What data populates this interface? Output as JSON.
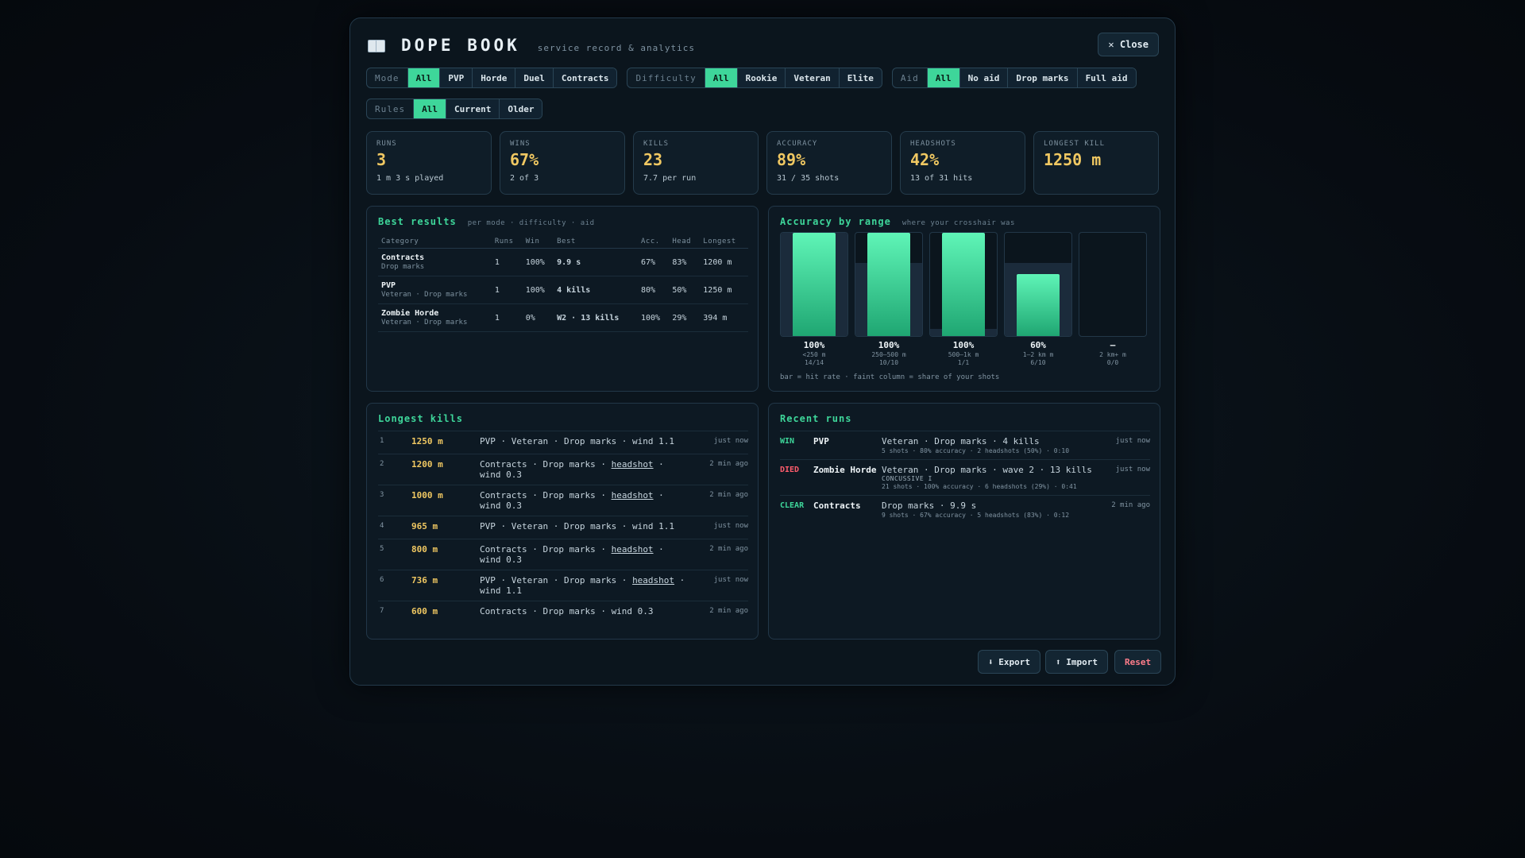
{
  "header": {
    "title": "DOPE BOOK",
    "subtitle": "service record & analytics",
    "close_label": "✕ Close"
  },
  "filters": {
    "mode": {
      "label": "Mode",
      "options": [
        "All",
        "PVP",
        "Horde",
        "Duel",
        "Contracts"
      ],
      "selected": "All"
    },
    "difficulty": {
      "label": "Difficulty",
      "options": [
        "All",
        "Rookie",
        "Veteran",
        "Elite"
      ],
      "selected": "All"
    },
    "aid": {
      "label": "Aid",
      "options": [
        "All",
        "No aid",
        "Drop marks",
        "Full aid"
      ],
      "selected": "All"
    },
    "rules": {
      "label": "Rules",
      "options": [
        "All",
        "Current",
        "Older"
      ],
      "selected": "All"
    }
  },
  "stats": [
    {
      "label": "RUNS",
      "value": "3",
      "sub": "1 m 3 s played"
    },
    {
      "label": "WINS",
      "value": "67%",
      "sub": "2 of 3"
    },
    {
      "label": "KILLS",
      "value": "23",
      "sub": "7.7 per run"
    },
    {
      "label": "ACCURACY",
      "value": "89%",
      "sub": "31 / 35 shots"
    },
    {
      "label": "HEADSHOTS",
      "value": "42%",
      "sub": "13 of 31 hits"
    },
    {
      "label": "LONGEST KILL",
      "value": "1250 m",
      "sub": ""
    }
  ],
  "best": {
    "title": "Best results",
    "subtitle": "per mode · difficulty · aid",
    "columns": [
      "Category",
      "Runs",
      "Win",
      "Best",
      "Acc.",
      "Head",
      "Longest"
    ],
    "rows": [
      {
        "name": "Contracts",
        "sub": "Drop marks",
        "runs": "1",
        "win": "100%",
        "best": "9.9 s",
        "acc": "67%",
        "head": "83%",
        "longest": "1200 m"
      },
      {
        "name": "PVP",
        "sub": "Veteran · Drop marks",
        "runs": "1",
        "win": "100%",
        "best": "4 kills",
        "acc": "80%",
        "head": "50%",
        "longest": "1250 m"
      },
      {
        "name": "Zombie Horde",
        "sub": "Veteran · Drop marks",
        "runs": "1",
        "win": "0%",
        "best": "W2 · 13 kills",
        "acc": "100%",
        "head": "29%",
        "longest": "394 m"
      }
    ]
  },
  "accuracy": {
    "title": "Accuracy by range",
    "subtitle": "where your crosshair was",
    "note": "bar = hit rate · faint column = share of your shots",
    "bars": [
      {
        "pct": "100%",
        "range": "<250 m",
        "count": "14/14",
        "hit_rate": 1.0,
        "share": 1.0
      },
      {
        "pct": "100%",
        "range": "250–500 m",
        "count": "10/10",
        "hit_rate": 1.0,
        "share": 0.71
      },
      {
        "pct": "100%",
        "range": "500–1k m",
        "count": "1/1",
        "hit_rate": 1.0,
        "share": 0.07
      },
      {
        "pct": "60%",
        "range": "1–2 km m",
        "count": "6/10",
        "hit_rate": 0.6,
        "share": 0.71
      },
      {
        "pct": "—",
        "range": "2 km+ m",
        "count": "0/0",
        "hit_rate": 0,
        "share": 0
      }
    ]
  },
  "longest": {
    "title": "Longest kills",
    "rows": [
      {
        "rank": "1",
        "dist": "1250 m",
        "pre": "PVP · Veteran · Drop marks · wind 1.1",
        "hs": "",
        "post": "",
        "time": "just now"
      },
      {
        "rank": "2",
        "dist": "1200 m",
        "pre": "Contracts · Drop marks · ",
        "hs": "headshot",
        "post": " · wind 0.3",
        "time": "2 min ago"
      },
      {
        "rank": "3",
        "dist": "1000 m",
        "pre": "Contracts · Drop marks · ",
        "hs": "headshot",
        "post": " · wind 0.3",
        "time": "2 min ago"
      },
      {
        "rank": "4",
        "dist": "965 m",
        "pre": "PVP · Veteran · Drop marks · wind 1.1",
        "hs": "",
        "post": "",
        "time": "just now"
      },
      {
        "rank": "5",
        "dist": "800 m",
        "pre": "Contracts · Drop marks · ",
        "hs": "headshot",
        "post": " · wind 0.3",
        "time": "2 min ago"
      },
      {
        "rank": "6",
        "dist": "736 m",
        "pre": "PVP · Veteran · Drop marks · ",
        "hs": "headshot",
        "post": " · wind 1.1",
        "time": "just now"
      },
      {
        "rank": "7",
        "dist": "600 m",
        "pre": "Contracts · Drop marks · wind 0.3",
        "hs": "",
        "post": "",
        "time": "2 min ago"
      }
    ]
  },
  "recent": {
    "title": "Recent runs",
    "rows": [
      {
        "status": "WIN",
        "status_color": "#3ed69a",
        "mode": "PVP",
        "main": "Veteran · Drop marks · 4 kills",
        "tag": "",
        "detail": "5 shots · 80% accuracy · 2 headshots (50%) · 0:10",
        "time": "just now"
      },
      {
        "status": "DIED",
        "status_color": "#ff5c6c",
        "mode": "Zombie Horde",
        "main": "Veteran · Drop marks · wave 2 · 13 kills",
        "tag": "CONCUSSIVE I",
        "detail": "21 shots · 100% accuracy · 6 headshots (29%) · 0:41",
        "time": "just now"
      },
      {
        "status": "CLEAR",
        "status_color": "#3ed69a",
        "mode": "Contracts",
        "main": "Drop marks · 9.9 s",
        "tag": "",
        "detail": "9 shots · 67% accuracy · 5 headshots (83%) · 0:12",
        "time": "2 min ago"
      }
    ]
  },
  "footer": {
    "export_label": "⬇ Export",
    "import_label": "⬆ Import",
    "reset_label": "Reset"
  },
  "colors": {
    "accent": "#3ed69a",
    "gold": "#f0c862",
    "danger": "#ff5c6c"
  }
}
